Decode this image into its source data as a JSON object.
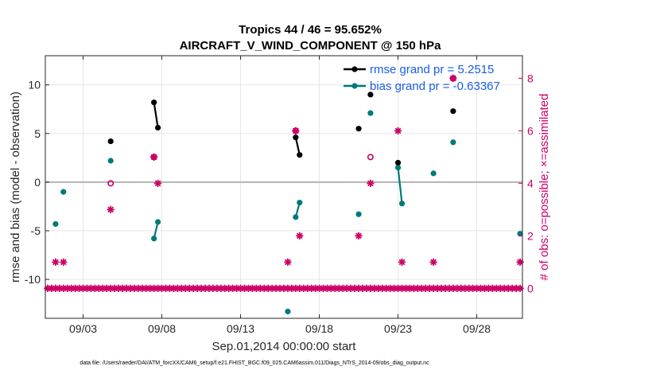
{
  "chart_data": {
    "type": "line",
    "title": "Tropics 44 / 46 = 95.652%",
    "subtitle": "AIRCRAFT_V_WIND_COMPONENT @ 150 hPa",
    "xlabel": "Sep.01,2014 00:00:00 start",
    "ylabel": "rmse and bias (model - observation)",
    "y2label": "# of obs: o=possible; ×=assimilated",
    "footnote": "data file: /Users/raeder/DAI/ATM_forcXX/CAM6_setup/f.e21.FHIST_BGC.f09_025.CAM6assim.011/Diags_NTrS_2014-09/obs_diag_output.nc",
    "xlim": [
      0.6,
      30.9
    ],
    "ylim": [
      -14,
      13
    ],
    "y2lim": [
      -1.14,
      8.86
    ],
    "xticks": [
      3,
      8,
      13,
      18,
      23,
      28
    ],
    "xticklabels": [
      "09/03",
      "09/08",
      "09/13",
      "09/18",
      "09/23",
      "09/28"
    ],
    "yticks": [
      10,
      5,
      0,
      -5,
      -10
    ],
    "yticklabels": [
      "10",
      "5",
      "0",
      "-5",
      "-10"
    ],
    "y2ticks": [
      8,
      6,
      4,
      2,
      0
    ],
    "y2ticklabels": [
      "8",
      "6",
      "4",
      "2",
      "0"
    ],
    "grid": true,
    "zero_line": 0,
    "legend_position": "top-right",
    "colors": {
      "rmse": "#000000",
      "bias": "#007a7a",
      "obs": "#cc0066",
      "legend_text": "#1a5ee6",
      "zero": "#b3b3b3",
      "grid": "#e6e6e6"
    },
    "series": [
      {
        "name": "rmse grand pr = 5.2515",
        "role": "rmse",
        "axis": "left",
        "points": [
          [
            4.75,
            4.2
          ],
          [
            7.5,
            8.2
          ],
          [
            7.75,
            5.6
          ],
          [
            16.5,
            4.6
          ],
          [
            16.75,
            2.8
          ],
          [
            20.5,
            5.5
          ],
          [
            21.25,
            9.0
          ],
          [
            23.0,
            2.0
          ],
          [
            26.5,
            7.3
          ]
        ],
        "segments": [
          [
            7.5,
            7.75
          ],
          [
            16.5,
            16.75
          ]
        ]
      },
      {
        "name": "bias grand pr = -0.63367",
        "role": "bias",
        "axis": "left",
        "points": [
          [
            1.25,
            -4.3
          ],
          [
            1.75,
            -1.0
          ],
          [
            4.75,
            2.2
          ],
          [
            7.5,
            -5.8
          ],
          [
            7.75,
            -4.1
          ],
          [
            16.0,
            -13.3
          ],
          [
            16.5,
            -3.6
          ],
          [
            16.75,
            -2.1
          ],
          [
            20.5,
            -3.3
          ],
          [
            21.25,
            7.1
          ],
          [
            23.0,
            1.5
          ],
          [
            23.25,
            -2.2
          ],
          [
            25.25,
            0.9
          ],
          [
            26.5,
            4.1
          ],
          [
            30.75,
            -5.3
          ]
        ],
        "segments": [
          [
            7.5,
            7.75
          ],
          [
            16.5,
            16.75
          ],
          [
            23.0,
            23.25
          ]
        ]
      },
      {
        "name": "obs possible",
        "role": "obs_possible",
        "axis": "right",
        "points": [
          [
            4.75,
            4
          ],
          [
            7.5,
            5
          ],
          [
            16.5,
            6
          ],
          [
            21.25,
            5
          ],
          [
            26.5,
            8
          ]
        ]
      },
      {
        "name": "obs assimilated",
        "role": "obs_assimilated",
        "axis": "right",
        "points": [
          [
            1.25,
            1
          ],
          [
            1.75,
            1
          ],
          [
            4.75,
            3
          ],
          [
            7.5,
            5
          ],
          [
            7.75,
            4
          ],
          [
            16.0,
            1
          ],
          [
            16.5,
            6
          ],
          [
            16.75,
            2
          ],
          [
            20.5,
            2
          ],
          [
            21.25,
            4
          ],
          [
            23.0,
            6
          ],
          [
            23.25,
            1
          ],
          [
            25.25,
            1
          ],
          [
            26.5,
            8
          ],
          [
            30.75,
            1
          ]
        ]
      }
    ],
    "obs_zero_counts": {
      "value": 0,
      "x_start": 0.75,
      "x_end": 30.75,
      "step": 0.25
    }
  }
}
